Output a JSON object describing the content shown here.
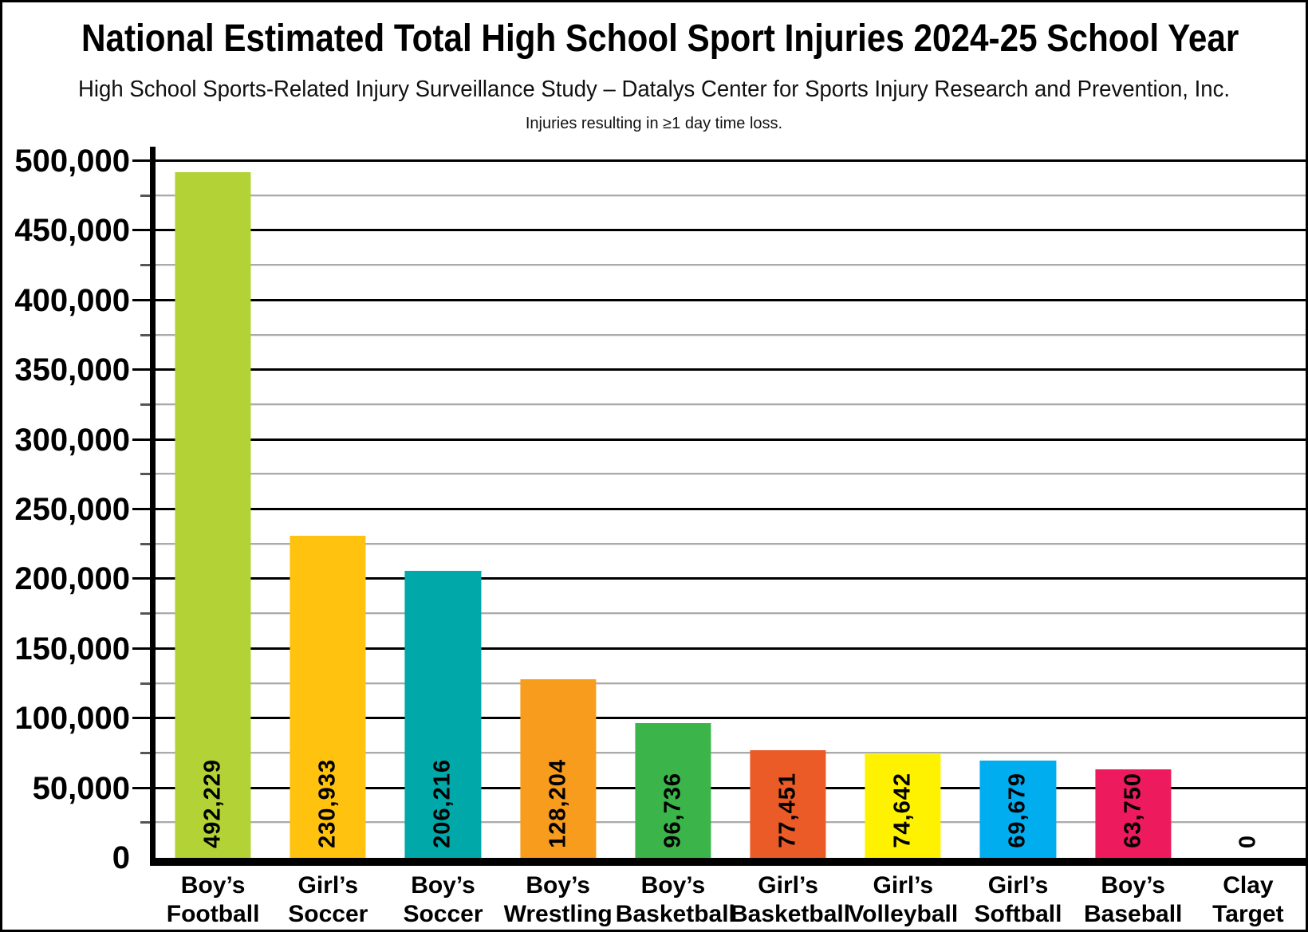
{
  "header": {
    "title": "National Estimated Total High School Sport Injuries 2024-25 School Year",
    "subtitle": "High School Sports-Related Injury Surveillance Study – Datalys Center for Sports Injury Research and Prevention, Inc.",
    "note": "Injuries resulting in ≥1 day time loss."
  },
  "chart_data": {
    "type": "bar",
    "title": "National Estimated Total High School Sport Injuries 2024-25 School Year",
    "subtitle": "High School Sports-Related Injury Surveillance Study – Datalys Center for Sports Injury Research and Prevention, Inc.",
    "annotation": "Injuries resulting in ≥1 day time loss.",
    "categories": [
      "Boy’s Football",
      "Girl’s Soccer",
      "Boy’s Soccer",
      "Boy’s Wrestling",
      "Boy’s Basketball",
      "Girl’s Basketball",
      "Girl’s Volleyball",
      "Girl’s Softball",
      "Boy’s Baseball",
      "Clay Target"
    ],
    "category_label_lines": [
      [
        "Boy’s",
        "Football"
      ],
      [
        "Girl’s",
        "Soccer"
      ],
      [
        "Boy’s",
        "Soccer"
      ],
      [
        "Boy’s",
        "Wrestling"
      ],
      [
        "Boy’s",
        "Basketball"
      ],
      [
        "Girl’s",
        "Basketball"
      ],
      [
        "Girl’s",
        "Volleyball"
      ],
      [
        "Girl’s",
        "Softball"
      ],
      [
        "Boy’s",
        "Baseball"
      ],
      [
        "Clay",
        "Target"
      ]
    ],
    "values": [
      492229,
      230933,
      206216,
      128204,
      96736,
      77451,
      74642,
      69679,
      63750,
      0
    ],
    "value_labels": [
      "492,229",
      "230,933",
      "206,216",
      "128,204",
      "96,736",
      "77,451",
      "74,642",
      "69,679",
      "63,750",
      "0"
    ],
    "bar_colors": [
      "#B2D235",
      "#FFC20E",
      "#00A8A9",
      "#F89C1E",
      "#3BB54A",
      "#EA5B27",
      "#FFF200",
      "#00AEEF",
      "#ED1A5E",
      null
    ],
    "xlabel": "",
    "ylabel": "",
    "ylim": [
      0,
      500000
    ],
    "ytick_step": 50000,
    "minor_tick_step": 25000,
    "ytick_labels": [
      "0",
      "50,000",
      "100,000",
      "150,000",
      "200,000",
      "250,000",
      "300,000",
      "350,000",
      "400,000",
      "450,000",
      "500,000"
    ],
    "grid": {
      "major_color": "#000000",
      "minor_color": "#ABABAB",
      "gridlines": "horizontal"
    },
    "legend": "none"
  }
}
